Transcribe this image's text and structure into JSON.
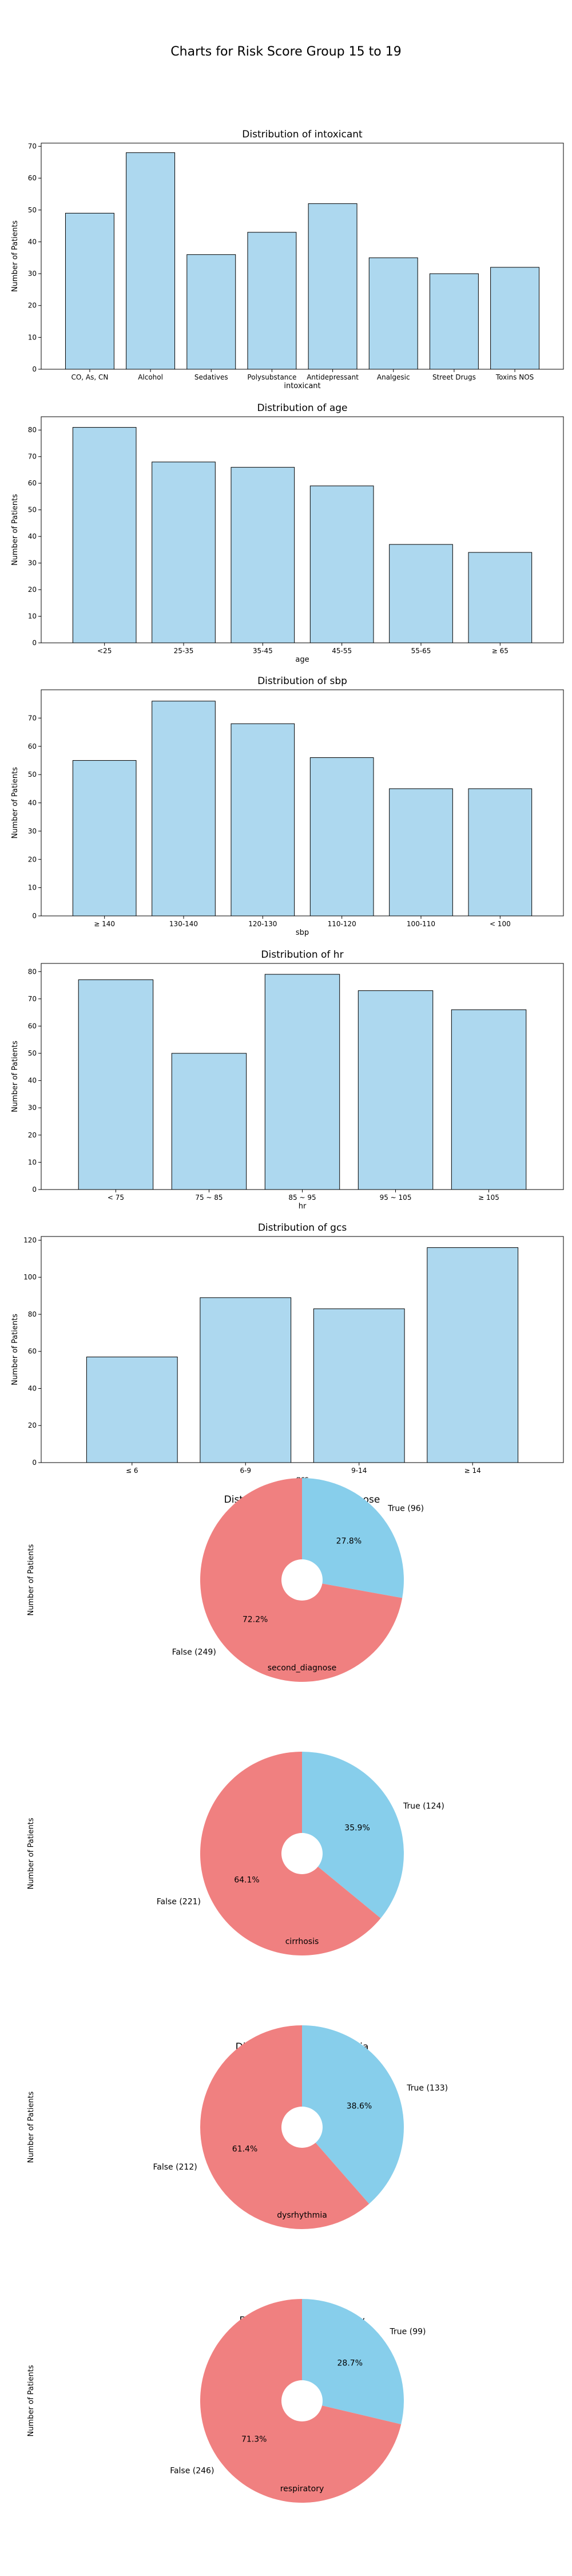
{
  "suptitle": "Charts for Risk Score Group 15 to 19",
  "colors": {
    "bar": "#add8ef",
    "bar_edge": "#000000",
    "pie_true": "#87ceeb",
    "pie_false": "#f08080"
  },
  "chart_data": [
    {
      "type": "bar",
      "title": "Distribution of intoxicant",
      "xlabel": "intoxicant",
      "ylabel": "Number of Patients",
      "categories": [
        "CO, As, CN",
        "Alcohol",
        "Sedatives",
        "Polysubstance",
        "Antidepressant",
        "Analgesic",
        "Street Drugs",
        "Toxins NOS"
      ],
      "values": [
        49,
        68,
        36,
        43,
        52,
        35,
        30,
        32
      ],
      "ylim": [
        0,
        71
      ],
      "yticks": [
        0,
        10,
        20,
        30,
        40,
        50,
        60,
        70
      ]
    },
    {
      "type": "bar",
      "title": "Distribution of age",
      "xlabel": "age",
      "ylabel": "Number of Patients",
      "categories": [
        "<25",
        "25-35",
        "35-45",
        "45-55",
        "55-65",
        "≥ 65"
      ],
      "values": [
        81,
        68,
        66,
        59,
        37,
        34
      ],
      "ylim": [
        0,
        85
      ],
      "yticks": [
        0,
        10,
        20,
        30,
        40,
        50,
        60,
        70,
        80
      ]
    },
    {
      "type": "bar",
      "title": "Distribution of sbp",
      "xlabel": "sbp",
      "ylabel": "Number of Patients",
      "categories": [
        "≥ 140",
        "130-140",
        "120-130",
        "110-120",
        "100-110",
        "< 100"
      ],
      "values": [
        55,
        76,
        68,
        56,
        45,
        45
      ],
      "ylim": [
        0,
        80
      ],
      "yticks": [
        0,
        10,
        20,
        30,
        40,
        50,
        60,
        70
      ]
    },
    {
      "type": "bar",
      "title": "Distribution of hr",
      "xlabel": "hr",
      "ylabel": "Number of Patients",
      "categories": [
        "< 75",
        "75 ~ 85",
        "85 ~ 95",
        "95 ~ 105",
        "≥ 105"
      ],
      "values": [
        77,
        50,
        79,
        73,
        66
      ],
      "ylim": [
        0,
        83
      ],
      "yticks": [
        0,
        10,
        20,
        30,
        40,
        50,
        60,
        70,
        80
      ]
    },
    {
      "type": "bar",
      "title": "Distribution of gcs",
      "xlabel": "gcs",
      "ylabel": "Number of Patients",
      "categories": [
        "≤ 6",
        "6-9",
        "9-14",
        "≥ 14"
      ],
      "values": [
        57,
        89,
        83,
        116
      ],
      "ylim": [
        0,
        122
      ],
      "yticks": [
        0,
        20,
        40,
        60,
        80,
        100,
        120
      ]
    },
    {
      "type": "pie",
      "title": "Distribution of second_diagnose",
      "xlabel": "second_diagnose",
      "ylabel": "Number of Patients",
      "slices": [
        {
          "label": "True (96)",
          "value": 96,
          "pct": "27.8%",
          "color": "#87ceeb"
        },
        {
          "label": "False (249)",
          "value": 249,
          "pct": "72.2%",
          "color": "#f08080"
        }
      ]
    },
    {
      "type": "pie",
      "title": "Distribution of cirrhosis",
      "xlabel": "cirrhosis",
      "ylabel": "Number of Patients",
      "slices": [
        {
          "label": "True (124)",
          "value": 124,
          "pct": "35.9%",
          "color": "#87ceeb"
        },
        {
          "label": "False (221)",
          "value": 221,
          "pct": "64.1%",
          "color": "#f08080"
        }
      ]
    },
    {
      "type": "pie",
      "title": "Distribution of dysrhythmia",
      "xlabel": "dysrhythmia",
      "ylabel": "Number of Patients",
      "slices": [
        {
          "label": "True (133)",
          "value": 133,
          "pct": "38.6%",
          "color": "#87ceeb"
        },
        {
          "label": "False (212)",
          "value": 212,
          "pct": "61.4%",
          "color": "#f08080"
        }
      ]
    },
    {
      "type": "pie",
      "title": "Distribution of respiratory",
      "xlabel": "respiratory",
      "ylabel": "Number of Patients",
      "slices": [
        {
          "label": "True (99)",
          "value": 99,
          "pct": "28.7%",
          "color": "#87ceeb"
        },
        {
          "label": "False (246)",
          "value": 246,
          "pct": "71.3%",
          "color": "#f08080"
        }
      ]
    }
  ]
}
